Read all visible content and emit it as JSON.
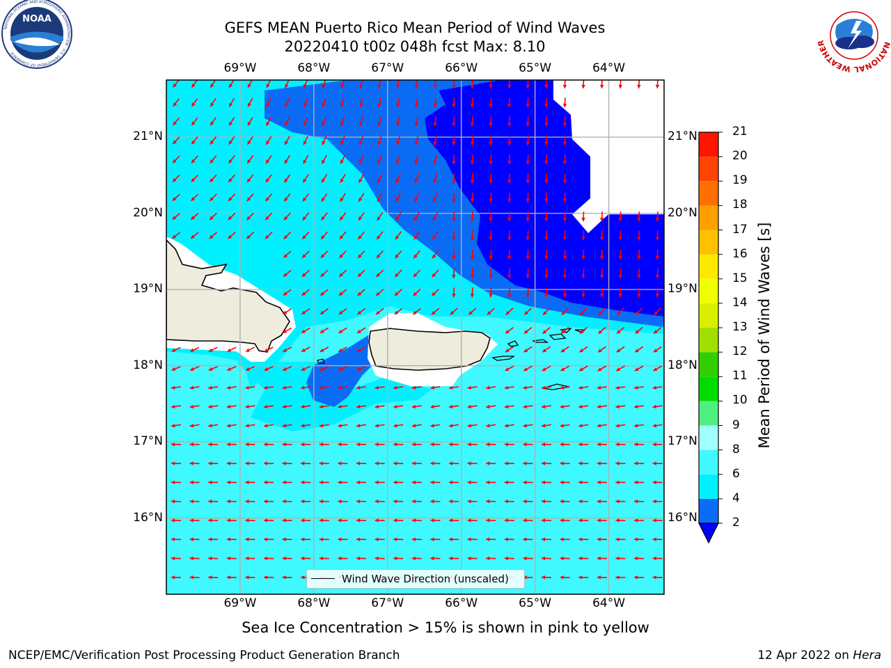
{
  "header": {
    "title_line1": "GEFS MEAN Puerto Rico Mean Period of Wind Waves",
    "title_line2": "20220410 t00z 048h fcst   Max: 8.10"
  },
  "logos": {
    "left": "NOAA",
    "left_ring_text": "NATIONAL OCEANIC AND ATMOSPHERIC ADMINISTRATION · U.S. DEPARTMENT OF COMMERCE",
    "right_ring_text": "NATIONAL WEATHER SERVICE"
  },
  "map": {
    "lon_labels": [
      "69°W",
      "68°W",
      "67°W",
      "66°W",
      "65°W",
      "64°W"
    ],
    "lat_labels": [
      "21°N",
      "20°N",
      "19°N",
      "18°N",
      "17°N",
      "16°N"
    ],
    "lon_values": [
      -69,
      -68,
      -67,
      -66,
      -65,
      -64
    ],
    "lat_values": [
      21,
      20,
      19,
      18,
      17,
      16
    ],
    "lon_range": [
      -70,
      -63.25
    ],
    "lat_range": [
      15,
      21.75
    ],
    "grid": true,
    "legend_label": "Wind Wave Direction (unscaled)",
    "arrow_color": "#ff0000",
    "land_color": "#eeecdc"
  },
  "colorbar": {
    "label": "Mean Period of Wind Waves [s]",
    "ticks": [
      "21",
      "20",
      "19",
      "18",
      "17",
      "16",
      "15",
      "14",
      "13",
      "12",
      "11",
      "10",
      "9",
      "8",
      "6",
      "4",
      "2"
    ],
    "levels": [
      2,
      4,
      6,
      8,
      9,
      10,
      11,
      12,
      13,
      14,
      15,
      16,
      17,
      18,
      19,
      20,
      21
    ],
    "colors": [
      "#0000ff",
      "#0a6cf5",
      "#00f0ff",
      "#40f8ff",
      "#a0ffff",
      "#50f080",
      "#00dc00",
      "#30d000",
      "#a0e000",
      "#d8f000",
      "#f0ff00",
      "#ffe800",
      "#ffc000",
      "#ffa000",
      "#ff7000",
      "#ff4400",
      "#ff1400"
    ],
    "under_color": "#0000ff"
  },
  "notes": {
    "sea_ice": "Sea Ice Concentration > 15% is shown in pink to yellow",
    "footer_left": "NCEP/EMC/Verification Post Processing Product Generation Branch",
    "footer_date": "12 Apr 2022 on ",
    "footer_host": "Hera"
  }
}
